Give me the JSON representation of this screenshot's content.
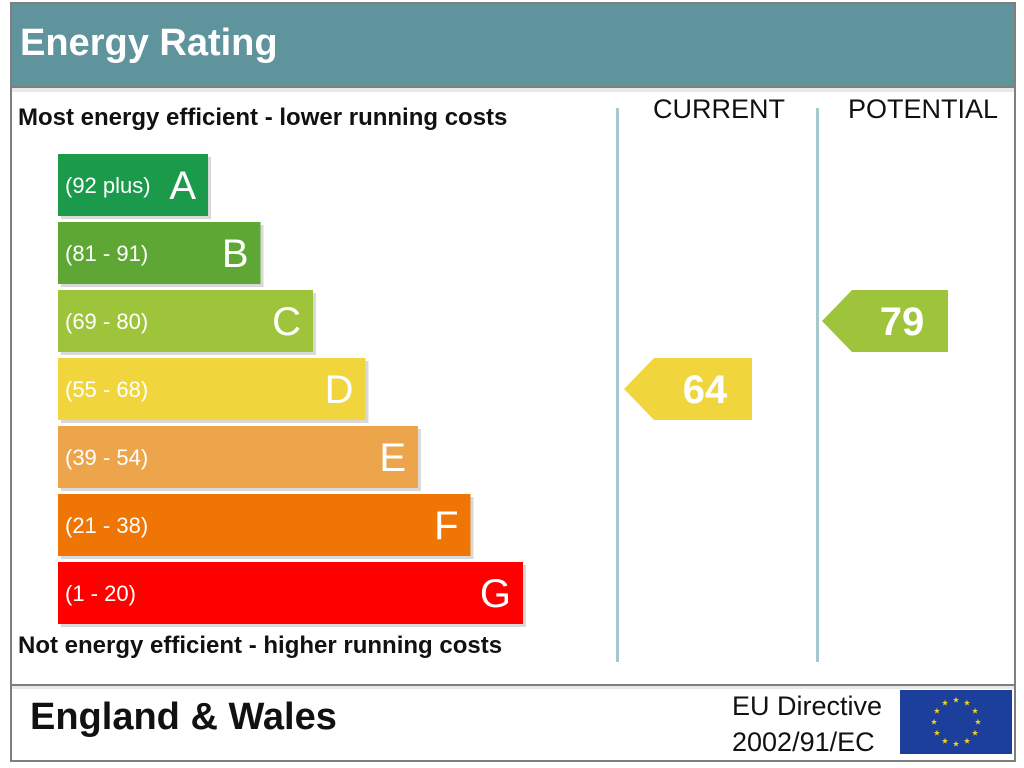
{
  "header": {
    "title": "Energy Rating"
  },
  "captions": {
    "top": "Most energy efficient - lower running costs",
    "bottom": "Not energy efficient - higher running costs"
  },
  "columns": {
    "current": "CURRENT",
    "potential": "POTENTIAL"
  },
  "footer": {
    "region": "England & Wales",
    "directive_line1": "EU Directive",
    "directive_line2": "2002/91/EC"
  },
  "chart_data": {
    "type": "bar",
    "title": "Energy Rating",
    "categories": [
      "A",
      "B",
      "C",
      "D",
      "E",
      "F",
      "G"
    ],
    "ranges": [
      "(92 plus)",
      "(81 - 91)",
      "(69 - 80)",
      "(55 - 68)",
      "(39 - 54)",
      "(21 - 38)",
      "(1 - 20)"
    ],
    "colors": [
      "#1a9a4a",
      "#5ea735",
      "#9ec43c",
      "#f0d53c",
      "#eca54b",
      "#ef7505",
      "#ff0000"
    ],
    "current": {
      "value": 64,
      "band": "D",
      "color": "#f0d53c"
    },
    "potential": {
      "value": 79,
      "band": "C",
      "color": "#9ec43c"
    }
  }
}
